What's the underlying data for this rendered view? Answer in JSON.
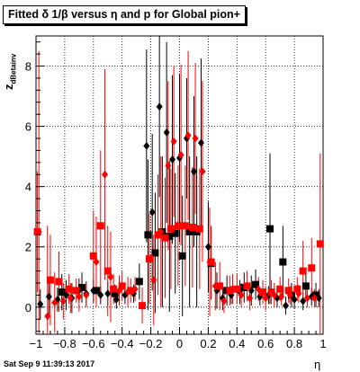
{
  "title": "Fitted δ 1/β versus η and p for Global pion+",
  "ylabel_main": "z",
  "ylabel_sub": "dBetainv",
  "xlabel": "η",
  "timestamp": "Sat Sep  9 11:39:13 2017",
  "colors": {
    "series_black": "#000000",
    "series_red": "#ff0000",
    "grid": "#000000"
  },
  "chart_data": {
    "type": "scatter",
    "xlim": [
      -1,
      1
    ],
    "ylim": [
      -0.9,
      9.0
    ],
    "xticks": [
      -1,
      -0.8,
      -0.6,
      -0.4,
      -0.2,
      0,
      0.2,
      0.4,
      0.6,
      0.8,
      1
    ],
    "xtick_labels": [
      "−1",
      "−0.8",
      "−0.6",
      "−0.4",
      "−0.2",
      "0",
      "0.2",
      "0.4",
      "0.6",
      "0.8",
      "1"
    ],
    "yticks": [
      0,
      2,
      4,
      6,
      8
    ],
    "ytick_labels": [
      "0",
      "2",
      "4",
      "6",
      "8"
    ],
    "grid": true,
    "series": [
      {
        "marker": "diamond",
        "color": "black",
        "points": [
          {
            "x": -0.97,
            "y": 0.1,
            "err": 0.5
          },
          {
            "x": -0.91,
            "y": 0.35,
            "err": 0.6
          },
          {
            "x": -0.85,
            "y": 0.25,
            "err": 0.4
          },
          {
            "x": -0.79,
            "y": 0.4,
            "err": 0.5
          },
          {
            "x": -0.75,
            "y": 0.3,
            "err": 0.5
          },
          {
            "x": -0.7,
            "y": 0.55,
            "err": 0.4
          },
          {
            "x": -0.65,
            "y": 0.45,
            "err": 0.4
          },
          {
            "x": -0.6,
            "y": 0.55,
            "err": 0.4
          },
          {
            "x": -0.55,
            "y": 0.4,
            "err": 0.3
          },
          {
            "x": -0.5,
            "y": 0.45,
            "err": 0.4
          },
          {
            "x": -0.44,
            "y": 0.25,
            "err": 0.3
          },
          {
            "x": -0.38,
            "y": 0.4,
            "err": 0.3
          },
          {
            "x": -0.32,
            "y": 0.45,
            "err": 0.3
          },
          {
            "x": -0.23,
            "y": 5.35,
            "err": 3.2
          },
          {
            "x": -0.19,
            "y": 3.15,
            "err": 2.6
          },
          {
            "x": -0.14,
            "y": 6.65,
            "err": 3.0
          },
          {
            "x": -0.09,
            "y": 5.8,
            "err": 3.0
          },
          {
            "x": -0.05,
            "y": 4.9,
            "err": 2.8
          },
          {
            "x": 0.0,
            "y": 4.95,
            "err": 2.8
          },
          {
            "x": 0.05,
            "y": 5.6,
            "err": 2.0
          },
          {
            "x": 0.1,
            "y": 4.5,
            "err": 2.5
          },
          {
            "x": 0.15,
            "y": 5.45,
            "err": 2.8
          },
          {
            "x": 0.2,
            "y": 2.0,
            "err": 1.5
          },
          {
            "x": 0.26,
            "y": 0.55,
            "err": 0.6
          },
          {
            "x": 0.3,
            "y": 0.3,
            "err": 0.4
          },
          {
            "x": 0.36,
            "y": 0.4,
            "err": 0.3
          },
          {
            "x": 0.42,
            "y": 0.5,
            "err": 0.4
          },
          {
            "x": 0.5,
            "y": 0.55,
            "err": 0.5
          },
          {
            "x": 0.56,
            "y": 0.35,
            "err": 0.3
          },
          {
            "x": 0.62,
            "y": 0.4,
            "err": 0.3
          },
          {
            "x": 0.68,
            "y": 0.3,
            "err": 0.3
          },
          {
            "x": 0.74,
            "y": 0.05,
            "err": 0.3
          },
          {
            "x": 0.8,
            "y": 0.25,
            "err": 0.3
          },
          {
            "x": 0.86,
            "y": 0.2,
            "err": 0.3
          },
          {
            "x": 0.92,
            "y": 0.35,
            "err": 0.3
          },
          {
            "x": 0.97,
            "y": 0.3,
            "err": 0.3
          }
        ]
      },
      {
        "marker": "square",
        "color": "black",
        "points": [
          {
            "x": -0.82,
            "y": 0.5,
            "err": 0.6
          },
          {
            "x": -0.68,
            "y": 0.65,
            "err": 0.5
          },
          {
            "x": -0.58,
            "y": 0.55,
            "err": 0.4
          },
          {
            "x": -0.45,
            "y": 0.45,
            "err": 0.3
          },
          {
            "x": -0.28,
            "y": 0.85,
            "err": 0.6
          },
          {
            "x": -0.22,
            "y": 2.4,
            "err": 2.5
          },
          {
            "x": -0.17,
            "y": 1.8,
            "err": 2.0
          },
          {
            "x": -0.12,
            "y": 2.5,
            "err": 2.5
          },
          {
            "x": -0.07,
            "y": 2.35,
            "err": 2.5
          },
          {
            "x": -0.03,
            "y": 2.45,
            "err": 2.0
          },
          {
            "x": 0.02,
            "y": 1.7,
            "err": 2.0
          },
          {
            "x": 0.07,
            "y": 2.5,
            "err": 2.5
          },
          {
            "x": 0.12,
            "y": 2.5,
            "err": 2.5
          },
          {
            "x": 0.22,
            "y": 1.45,
            "err": 1.2
          },
          {
            "x": 0.33,
            "y": 0.55,
            "err": 0.5
          },
          {
            "x": 0.45,
            "y": 0.65,
            "err": 0.5
          },
          {
            "x": 0.53,
            "y": 0.75,
            "err": 0.5
          },
          {
            "x": 0.63,
            "y": 2.6,
            "err": 2.5
          },
          {
            "x": 0.72,
            "y": 1.5,
            "err": 1.2
          },
          {
            "x": 0.78,
            "y": 0.4,
            "err": 0.4
          },
          {
            "x": 0.88,
            "y": 0.7,
            "err": 0.4
          },
          {
            "x": 0.95,
            "y": 0.4,
            "err": 0.4
          }
        ]
      },
      {
        "marker": "diamond",
        "color": "red",
        "points": [
          {
            "x": -0.98,
            "y": 2.5,
            "err": 6.0
          },
          {
            "x": -0.92,
            "y": -0.3,
            "err": 3.0
          },
          {
            "x": -0.87,
            "y": 0.15,
            "err": 1.0
          },
          {
            "x": -0.81,
            "y": 0.2,
            "err": 0.6
          },
          {
            "x": -0.76,
            "y": 0.3,
            "err": 0.5
          },
          {
            "x": -0.7,
            "y": 0.35,
            "err": 0.5
          },
          {
            "x": -0.65,
            "y": 0.4,
            "err": 0.4
          },
          {
            "x": -0.58,
            "y": 1.5,
            "err": 1.5
          },
          {
            "x": -0.52,
            "y": 4.4,
            "err": 3.5
          },
          {
            "x": -0.48,
            "y": 1.0,
            "err": 1.5
          },
          {
            "x": -0.42,
            "y": 0.55,
            "err": 0.5
          },
          {
            "x": -0.36,
            "y": 0.5,
            "err": 0.5
          },
          {
            "x": -0.31,
            "y": 0.6,
            "err": 0.4
          },
          {
            "x": -0.18,
            "y": 0.9,
            "err": 1.5
          },
          {
            "x": -0.13,
            "y": 2.5,
            "err": 2.5
          },
          {
            "x": -0.08,
            "y": 4.7,
            "err": 2.8
          },
          {
            "x": -0.04,
            "y": 5.5,
            "err": 2.5
          },
          {
            "x": 0.01,
            "y": 5.05,
            "err": 3.0
          },
          {
            "x": 0.06,
            "y": 5.7,
            "err": 2.8
          },
          {
            "x": 0.11,
            "y": 5.6,
            "err": 2.5
          },
          {
            "x": 0.16,
            "y": 4.5,
            "err": 3.0
          },
          {
            "x": 0.21,
            "y": 1.5,
            "err": 1.8
          },
          {
            "x": 0.25,
            "y": 0.7,
            "err": 0.8
          },
          {
            "x": 0.31,
            "y": 0.2,
            "err": 0.4
          },
          {
            "x": 0.37,
            "y": 0.6,
            "err": 0.5
          },
          {
            "x": 0.43,
            "y": 0.4,
            "err": 0.4
          },
          {
            "x": 0.49,
            "y": 0.3,
            "err": 0.4
          },
          {
            "x": 0.55,
            "y": 0.6,
            "err": 0.4
          },
          {
            "x": 0.6,
            "y": 0.3,
            "err": 0.4
          },
          {
            "x": 0.66,
            "y": 0.4,
            "err": 0.4
          },
          {
            "x": 0.71,
            "y": 0.35,
            "err": 0.3
          },
          {
            "x": 0.77,
            "y": 0.4,
            "err": 0.3
          },
          {
            "x": 0.83,
            "y": 0.45,
            "err": 0.3
          },
          {
            "x": 0.89,
            "y": 0.3,
            "err": 0.3
          },
          {
            "x": 0.94,
            "y": 0.3,
            "err": 0.3
          }
        ]
      },
      {
        "marker": "square",
        "color": "red",
        "points": [
          {
            "x": -0.99,
            "y": 2.5,
            "err": 2.0
          },
          {
            "x": -0.9,
            "y": 0.9,
            "err": 1.5
          },
          {
            "x": -0.84,
            "y": 0.85,
            "err": 1.0
          },
          {
            "x": -0.77,
            "y": 0.6,
            "err": 0.5
          },
          {
            "x": -0.72,
            "y": 0.55,
            "err": 0.4
          },
          {
            "x": -0.6,
            "y": 1.7,
            "err": 1.5
          },
          {
            "x": -0.55,
            "y": 2.7,
            "err": 2.5
          },
          {
            "x": -0.5,
            "y": 1.2,
            "err": 1.5
          },
          {
            "x": -0.46,
            "y": 0.6,
            "err": 0.5
          },
          {
            "x": -0.4,
            "y": 0.7,
            "err": 0.5
          },
          {
            "x": -0.34,
            "y": 0.55,
            "err": 0.4
          },
          {
            "x": -0.26,
            "y": 0.05,
            "err": 0.6
          },
          {
            "x": -0.21,
            "y": 1.6,
            "err": 1.5
          },
          {
            "x": -0.15,
            "y": 2.4,
            "err": 2.0
          },
          {
            "x": -0.1,
            "y": 2.3,
            "err": 2.0
          },
          {
            "x": -0.06,
            "y": 2.6,
            "err": 2.0
          },
          {
            "x": -0.01,
            "y": 2.7,
            "err": 2.0
          },
          {
            "x": 0.04,
            "y": 2.7,
            "err": 2.0
          },
          {
            "x": 0.09,
            "y": 2.65,
            "err": 2.0
          },
          {
            "x": 0.14,
            "y": 2.6,
            "err": 2.0
          },
          {
            "x": 0.22,
            "y": 1.5,
            "err": 1.2
          },
          {
            "x": 0.28,
            "y": 0.7,
            "err": 0.8
          },
          {
            "x": 0.35,
            "y": 0.55,
            "err": 0.5
          },
          {
            "x": 0.4,
            "y": 0.6,
            "err": 0.5
          },
          {
            "x": 0.47,
            "y": 0.7,
            "err": 0.5
          },
          {
            "x": 0.58,
            "y": 0.5,
            "err": 0.4
          },
          {
            "x": 0.64,
            "y": 0.5,
            "err": 0.4
          },
          {
            "x": 0.7,
            "y": 0.6,
            "err": 0.4
          },
          {
            "x": 0.76,
            "y": 0.55,
            "err": 0.4
          },
          {
            "x": 0.82,
            "y": 0.6,
            "err": 0.4
          },
          {
            "x": 0.86,
            "y": 1.2,
            "err": 1.0
          },
          {
            "x": 0.92,
            "y": 1.3,
            "err": 1.0
          },
          {
            "x": 0.98,
            "y": 2.1,
            "err": 3.0
          }
        ]
      }
    ]
  }
}
